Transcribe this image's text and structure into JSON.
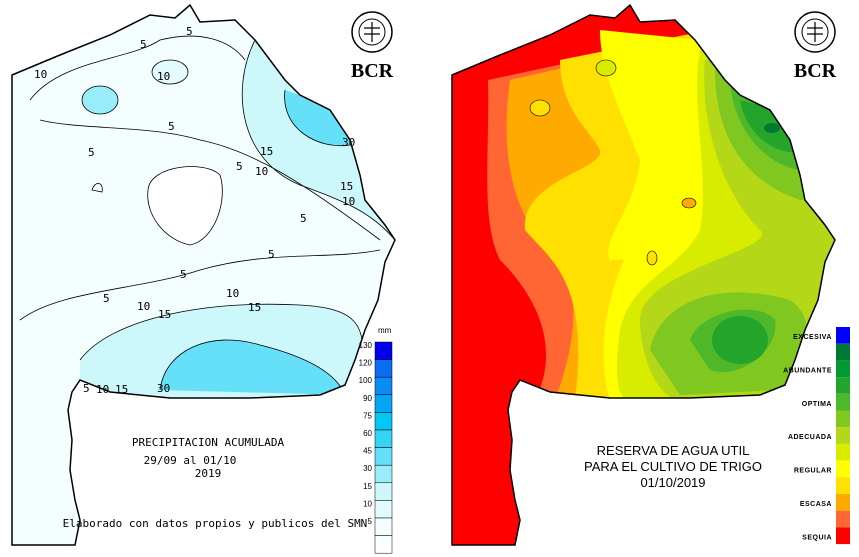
{
  "logo": {
    "text": "BCR",
    "seal_text": "BOLSA DE COMERCIO DE ROSARIO"
  },
  "precip_map": {
    "title": "PRECIPITACION ACUMULADA",
    "period": "29/09 al 01/10",
    "year": "2019",
    "credit": "Elaborado con datos propios y publicos del SMN",
    "unit": "mm",
    "legend": [
      "130",
      "120",
      "100",
      "90",
      "75",
      "60",
      "45",
      "30",
      "15",
      "10",
      "5"
    ],
    "legend_colors": [
      "#0000ee",
      "#0a6cf0",
      "#0a8cf5",
      "#08a4f5",
      "#00c8f5",
      "#33d4f5",
      "#66e0f8",
      "#99ecfa",
      "#ccf8fc",
      "#e4fbfd",
      "#f4fefe"
    ],
    "contour_labels": [
      "5",
      "10",
      "10",
      "5",
      "5",
      "15",
      "10",
      "15",
      "10",
      "30",
      "5",
      "5",
      "5",
      "10",
      "15",
      "5",
      "10",
      "15",
      "30",
      "5",
      "10",
      "15",
      "5",
      "5"
    ]
  },
  "water_map": {
    "title_line1": "RESERVA DE AGUA UTIL",
    "title_line2": "PARA EL CULTIVO DE TRIGO",
    "date": "01/10/2019",
    "legend_labels": [
      "EXCESIVA",
      "ABUNDANTE",
      "OPTIMA",
      "ADECUADA",
      "REGULAR",
      "ESCASA",
      "SEQUIA"
    ],
    "legend_colors": [
      "#0000ff",
      "#007a33",
      "#009933",
      "#22a52a",
      "#4fb82a",
      "#80c820",
      "#b4d818",
      "#d8ec00",
      "#ffff00",
      "#ffe000",
      "#ffaa00",
      "#ff6633",
      "#ff0000"
    ]
  }
}
